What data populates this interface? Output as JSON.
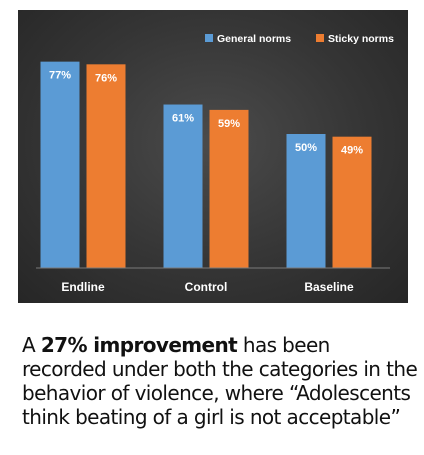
{
  "chart_data": {
    "type": "bar",
    "categories": [
      "Endline",
      "Control",
      "Baseline"
    ],
    "series": [
      {
        "name": "General norms",
        "values": [
          77,
          61,
          50
        ],
        "color": "#5b9bd5"
      },
      {
        "name": "Sticky norms",
        "values": [
          76,
          59,
          49
        ],
        "color": "#ed7d31"
      }
    ],
    "data_labels": [
      [
        "77%",
        "61%",
        "50%"
      ],
      [
        "76%",
        "59%",
        "49%"
      ]
    ],
    "ylim": [
      0,
      100
    ],
    "grid": false,
    "legend": "top-right",
    "background": "#333333"
  },
  "caption": {
    "prefix": "A ",
    "highlight": "27% improvement",
    "suffix": " has been recorded under both the categories in the behavior of violence, where “Adolescents think beating of a girl is not acceptable”"
  }
}
